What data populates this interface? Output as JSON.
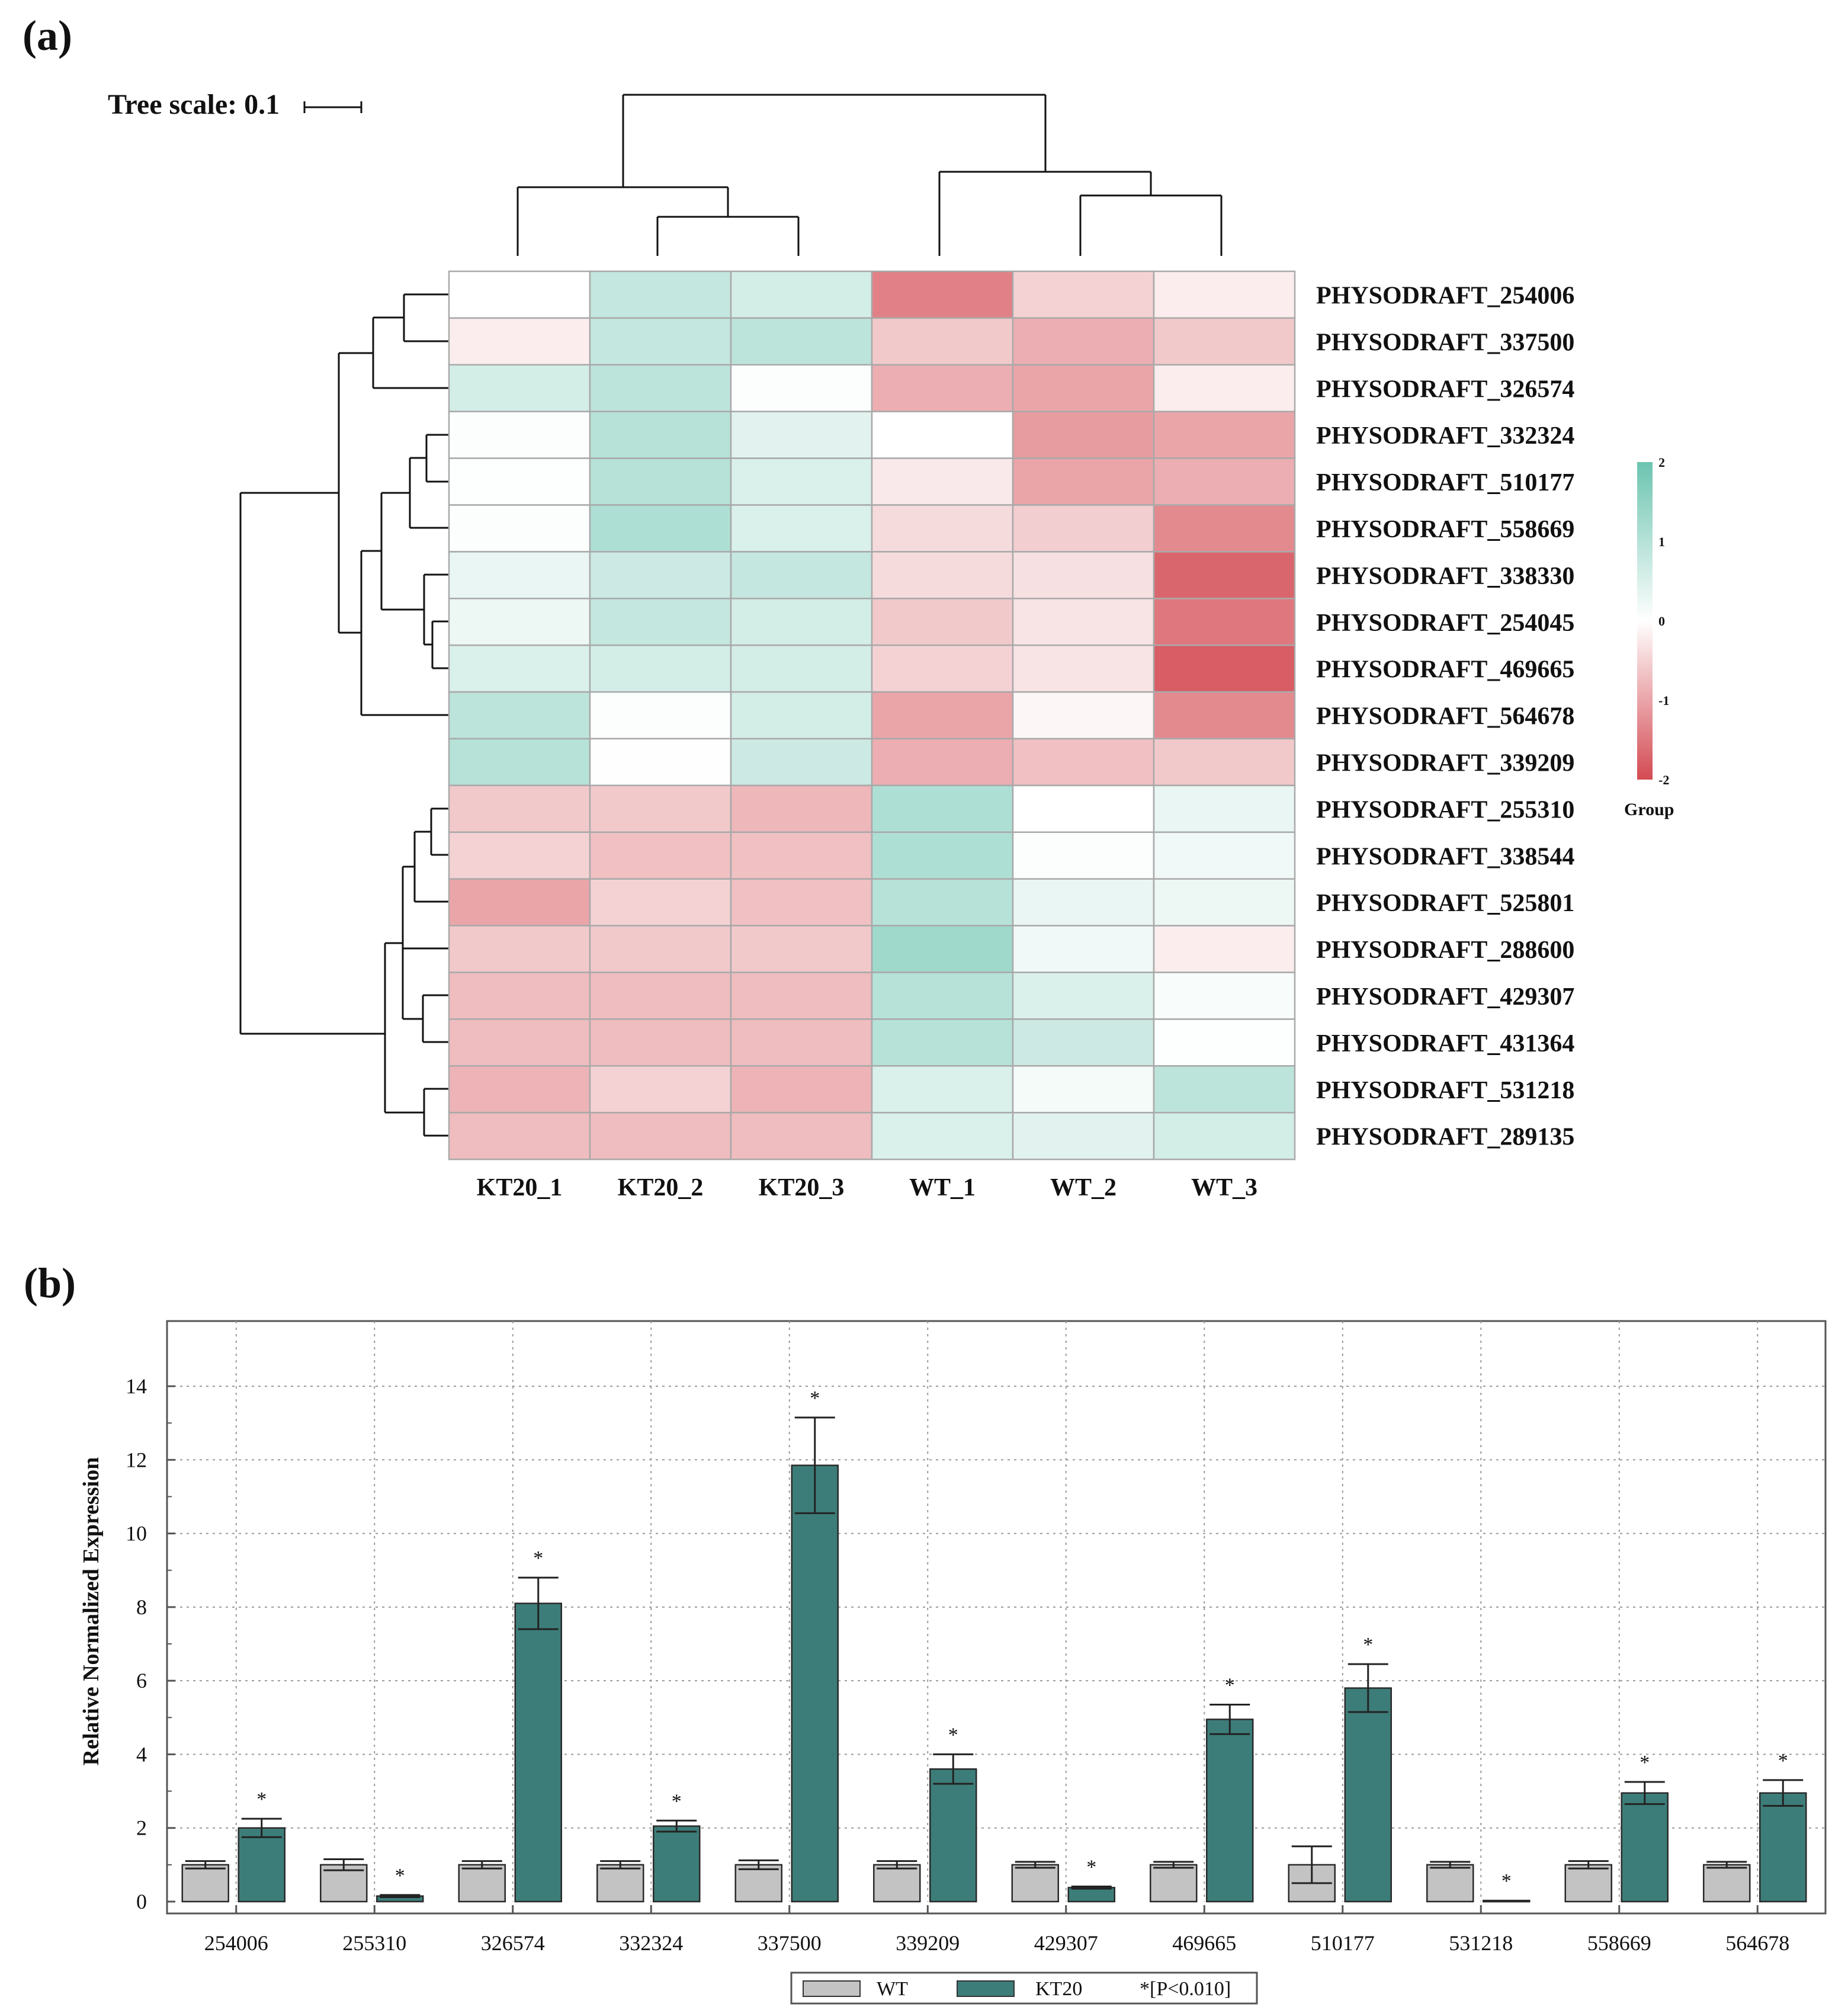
{
  "panel_a_label": "(a)",
  "panel_b_label": "(b)",
  "colors": {
    "high": "#6cc4b0",
    "mid": "#ffffff",
    "low": "#d44b53",
    "wt_bar": "#c3c3c3",
    "kt20_bar": "#3d7d79"
  },
  "chart_data": [
    {
      "type": "heatmap",
      "tree_scale_label": "Tree scale: 0.1",
      "columns": [
        "KT20_1",
        "KT20_2",
        "KT20_3",
        "WT_1",
        "WT_2",
        "WT_3"
      ],
      "rows": [
        "PHYSODRAFT_254006",
        "PHYSODRAFT_337500",
        "PHYSODRAFT_326574",
        "PHYSODRAFT_332324",
        "PHYSODRAFT_510177",
        "PHYSODRAFT_558669",
        "PHYSODRAFT_338330",
        "PHYSODRAFT_254045",
        "PHYSODRAFT_469665",
        "PHYSODRAFT_564678",
        "PHYSODRAFT_339209",
        "PHYSODRAFT_255310",
        "PHYSODRAFT_338544",
        "PHYSODRAFT_525801",
        "PHYSODRAFT_288600",
        "PHYSODRAFT_429307",
        "PHYSODRAFT_431364",
        "PHYSODRAFT_531218",
        "PHYSODRAFT_289135"
      ],
      "values": [
        [
          0.0,
          0.8,
          0.6,
          -1.4,
          -0.5,
          -0.2
        ],
        [
          -0.2,
          0.8,
          0.9,
          -0.6,
          -0.9,
          -0.6
        ],
        [
          0.6,
          0.9,
          0.05,
          -0.9,
          -1.0,
          -0.2
        ],
        [
          0.05,
          1.0,
          0.4,
          0.0,
          -1.1,
          -1.0
        ],
        [
          0.03,
          1.0,
          0.5,
          -0.25,
          -1.0,
          -0.9
        ],
        [
          0.05,
          1.1,
          0.5,
          -0.4,
          -0.55,
          -1.3
        ],
        [
          0.3,
          0.7,
          0.8,
          -0.4,
          -0.35,
          -1.7
        ],
        [
          0.25,
          0.8,
          0.6,
          -0.6,
          -0.3,
          -1.5
        ],
        [
          0.5,
          0.6,
          0.6,
          -0.5,
          -0.3,
          -1.8
        ],
        [
          0.9,
          0.05,
          0.6,
          -1.0,
          -0.1,
          -1.3
        ],
        [
          1.0,
          0.02,
          0.7,
          -0.9,
          -0.7,
          -0.6
        ],
        [
          -0.6,
          -0.6,
          -0.8,
          1.1,
          0.0,
          0.3
        ],
        [
          -0.5,
          -0.7,
          -0.7,
          1.1,
          0.05,
          0.2
        ],
        [
          -1.0,
          -0.5,
          -0.7,
          1.0,
          0.3,
          0.25
        ],
        [
          -0.6,
          -0.6,
          -0.6,
          1.3,
          0.2,
          -0.2
        ],
        [
          -0.75,
          -0.75,
          -0.75,
          1.0,
          0.5,
          0.1
        ],
        [
          -0.75,
          -0.75,
          -0.75,
          1.0,
          0.7,
          0.03
        ],
        [
          -0.85,
          -0.5,
          -0.85,
          0.5,
          0.15,
          0.9
        ],
        [
          -0.75,
          -0.75,
          -0.75,
          0.5,
          0.4,
          0.6
        ]
      ],
      "color_scale": {
        "min": -2,
        "max": 2,
        "ticks": [
          "2",
          "1",
          "0",
          "-1",
          "-2"
        ]
      },
      "legend_title": "Group"
    },
    {
      "type": "bar",
      "categories": [
        "254006",
        "255310",
        "326574",
        "332324",
        "337500",
        "339209",
        "429307",
        "469665",
        "510177",
        "531218",
        "558669",
        "564678"
      ],
      "series": [
        {
          "name": "WT",
          "values": [
            1.0,
            1.0,
            1.0,
            1.0,
            1.0,
            1.0,
            1.0,
            1.0,
            1.0,
            1.0,
            1.0,
            1.0
          ],
          "errors": [
            0.1,
            0.15,
            0.1,
            0.1,
            0.12,
            0.1,
            0.08,
            0.08,
            0.5,
            0.08,
            0.1,
            0.08
          ]
        },
        {
          "name": "KT20",
          "values": [
            2.0,
            0.15,
            8.1,
            2.05,
            11.85,
            3.6,
            0.38,
            4.95,
            5.8,
            0.03,
            2.95,
            2.95
          ],
          "errors": [
            0.25,
            0.03,
            0.7,
            0.15,
            1.3,
            0.4,
            0.03,
            0.4,
            0.65,
            0.0,
            0.3,
            0.35
          ]
        }
      ],
      "significance_marker": "*",
      "significant": [
        true,
        true,
        true,
        true,
        true,
        true,
        true,
        true,
        true,
        true,
        true,
        true
      ],
      "ylabel": "Relative Normalized Expression",
      "xlabel": "",
      "ylim": [
        0,
        15.5
      ],
      "yticks": [
        0,
        2,
        4,
        6,
        8,
        10,
        12,
        14
      ],
      "legend": {
        "wt": "WT",
        "kt20": "KT20",
        "significance": "*[P<0.010]"
      }
    }
  ]
}
